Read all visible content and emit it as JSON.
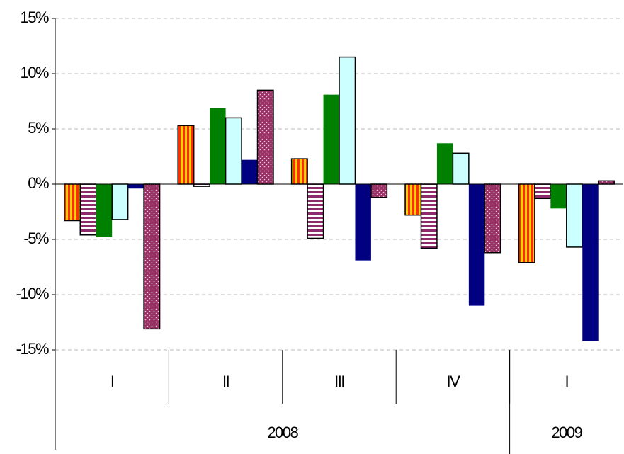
{
  "chart_data": {
    "type": "bar",
    "categories": [
      "I",
      "II",
      "III",
      "IV",
      "I"
    ],
    "groups": [
      {
        "label": "2008",
        "span": 4
      },
      {
        "label": "2009",
        "span": 1
      }
    ],
    "series": [
      {
        "color": "#ff2a00",
        "background": "#ffd200",
        "pattern": "vertical-stripes",
        "outline": true,
        "values": [
          -3.3,
          5.3,
          2.3,
          -2.8,
          -7.1
        ]
      },
      {
        "color": "#8b2b6b",
        "background": "#ffffff",
        "pattern": "horizontal-stripes",
        "outline": true,
        "values": [
          -4.6,
          -0.2,
          -4.9,
          -5.8,
          -1.3
        ]
      },
      {
        "color": "#008000",
        "outline": false,
        "values": [
          -4.8,
          6.9,
          8.1,
          3.7,
          -2.2
        ]
      },
      {
        "color": "#ccffff",
        "outline": true,
        "values": [
          -3.2,
          6.0,
          11.5,
          2.8,
          -5.7
        ]
      },
      {
        "color": "#000080",
        "outline": false,
        "values": [
          -0.4,
          2.2,
          -6.9,
          -11.0,
          -14.2
        ]
      },
      {
        "color": "#993366",
        "background": "#993366",
        "dots": "#e8c8dc",
        "pattern": "dots",
        "outline": true,
        "values": [
          -13.1,
          8.5,
          -1.2,
          -6.2,
          0.3
        ]
      }
    ],
    "ylim": [
      -15,
      15
    ],
    "yticks": [
      {
        "value": -15,
        "label": "-15%"
      },
      {
        "value": -10,
        "label": "-10%"
      },
      {
        "value": -5,
        "label": "-5%"
      },
      {
        "value": 0,
        "label": "0%"
      },
      {
        "value": 5,
        "label": "5%"
      },
      {
        "value": 10,
        "label": "10%"
      },
      {
        "value": 15,
        "label": "15%"
      }
    ],
    "grid": true
  }
}
